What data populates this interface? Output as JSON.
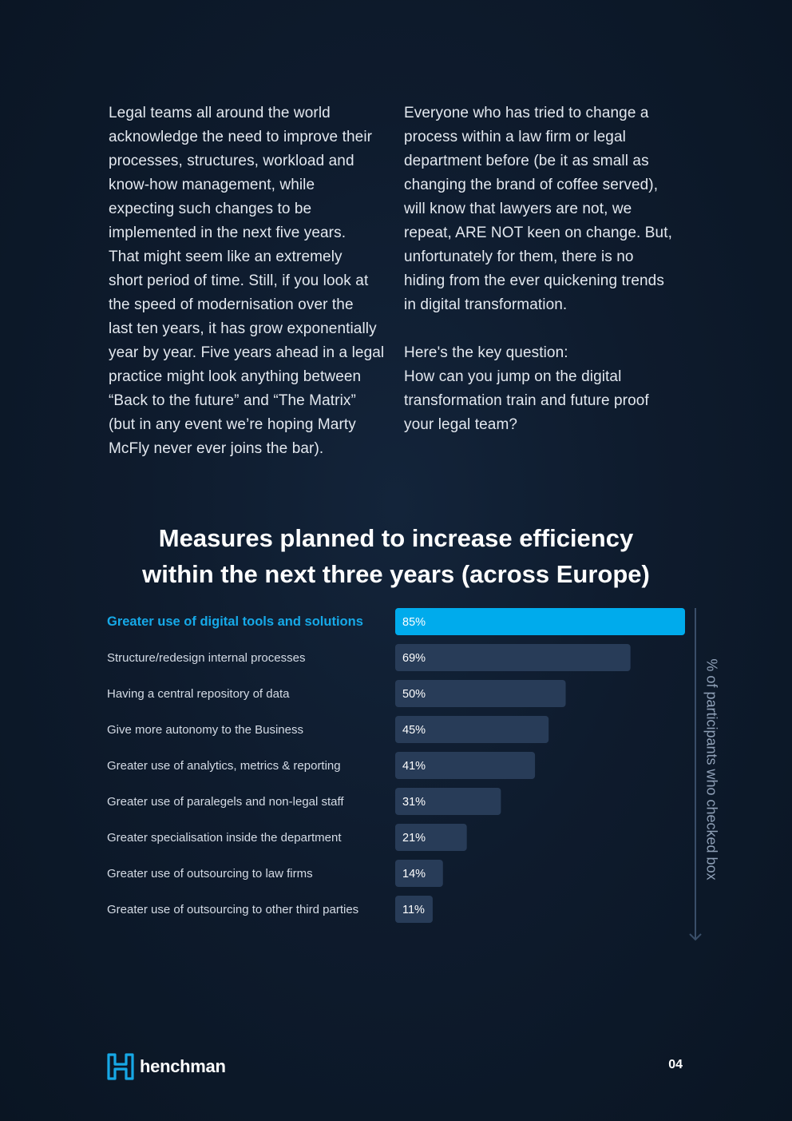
{
  "intro": {
    "left_text": "Legal teams all around the world\nacknowledge the need to improve their\nprocesses, structures, workload and\nknow-how management, while\nexpecting such changes to be\nimplemented in the next five years.\nThat might seem like an extremely\nshort period of time. Still, if you look at\nthe speed of modernisation over the\nlast ten years, it has grow exponentially\nyear by year. Five years ahead in a legal\npractice might look anything between\n“Back to the future” and “The Matrix”\n(but in any event we’re hoping Marty\nMcFly never ever joins the bar).",
    "right_text": "Everyone who has tried to change a\nprocess within a law firm or legal\ndepartment before (be it as small as\nchanging the brand of coffee served),\nwill know that lawyers are not, we\nrepeat, ARE NOT keen on change. But,\nunfortunately for them, there is no\nhiding from the ever quickening trends\nin digital transformation.\n\nHere's the key question:\nHow can you jump on the digital\ntransformation train and future proof\nyour legal team?"
  },
  "chart_data": {
    "type": "bar",
    "orientation": "horizontal",
    "title": "Measures planned to increase efficiency\nwithin the next three years (across Europe)",
    "axis_label": "% of participants who checked box",
    "categories": [
      "Greater use of digital tools and solutions",
      "Structure/redesign internal processes",
      "Having a central repository of data",
      "Give more autonomy to the Business",
      "Greater use of analytics, metrics & reporting",
      "Greater use of paralegels and non-legal staff",
      "Greater specialisation inside the department",
      "Greater use of outsourcing to law firms",
      "Greater use of outsourcing to other third parties"
    ],
    "values": [
      85,
      69,
      50,
      45,
      41,
      31,
      21,
      14,
      11
    ],
    "value_labels": [
      "85%",
      "69%",
      "50%",
      "45%",
      "41%",
      "31%",
      "21%",
      "14%",
      "11%"
    ],
    "highlighted_index": 0,
    "xlim": [
      0,
      85
    ],
    "grid": false,
    "colors": {
      "highlight": "#00abec",
      "bar": "#283c58",
      "highlight_label": "#16a9e8",
      "label": "#d4dbe5",
      "axis": "#3a4e69"
    }
  },
  "footer": {
    "brand": "henchman",
    "page_number": "04",
    "logo_color": "#17a8e6"
  }
}
